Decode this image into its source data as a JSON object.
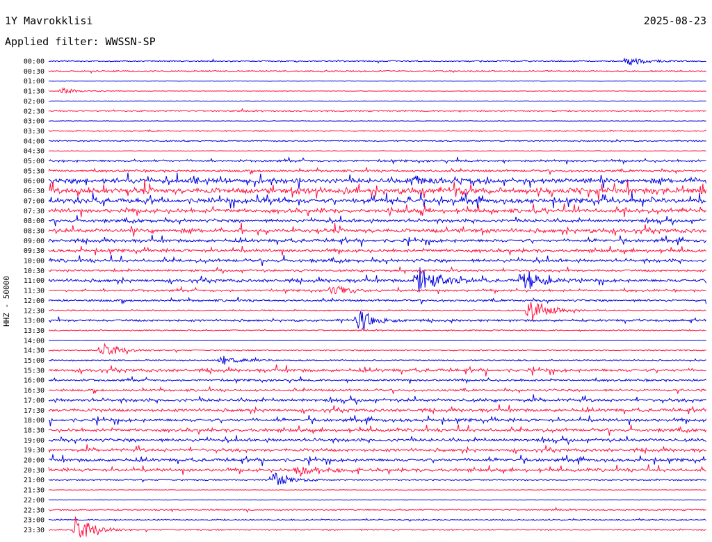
{
  "header": {
    "station": "1Y Mavrokklisi",
    "date": "2025-08-23",
    "filter": "Applied filter: WWSSN-SP"
  },
  "chart_data": {
    "type": "line",
    "title": "1Y Mavrokklisi",
    "subtitle": "Applied filter: WWSSN-SP",
    "ylabel": "HHZ - 50000",
    "grid": false,
    "colors": [
      "#0000e0",
      "#ff1040"
    ],
    "trace_labels": [
      "00:00",
      "00:30",
      "01:00",
      "01:30",
      "02:00",
      "02:30",
      "03:00",
      "03:30",
      "04:00",
      "04:30",
      "05:00",
      "05:30",
      "06:00",
      "06:30",
      "07:00",
      "07:30",
      "08:00",
      "08:30",
      "09:00",
      "09:30",
      "10:00",
      "10:30",
      "11:00",
      "11:30",
      "12:00",
      "12:30",
      "13:00",
      "13:30",
      "14:00",
      "14:30",
      "15:00",
      "15:30",
      "16:00",
      "16:30",
      "17:00",
      "17:30",
      "18:00",
      "18:30",
      "19:00",
      "19:30",
      "20:00",
      "20:30",
      "21:00",
      "21:30",
      "22:00",
      "22:30",
      "23:00",
      "23:30"
    ],
    "noise_level": [
      1,
      1,
      0,
      0,
      0,
      1,
      0,
      1,
      1,
      0,
      2,
      2,
      5,
      6,
      5,
      4,
      3,
      4,
      3,
      3,
      3,
      2,
      3,
      2,
      2,
      1,
      2,
      1,
      0,
      1,
      1,
      3,
      2,
      2,
      3,
      3,
      3,
      3,
      3,
      3,
      3,
      3,
      1,
      0,
      0,
      1,
      1,
      1
    ],
    "events": [
      {
        "trace": "00:00",
        "x": 0.88,
        "amp": 0.8
      },
      {
        "trace": "01:30",
        "x": 0.02,
        "amp": 0.6
      },
      {
        "trace": "06:00",
        "x": 0.55,
        "amp": 1.0
      },
      {
        "trace": "11:00",
        "x": 0.56,
        "amp": 3.2
      },
      {
        "trace": "11:00",
        "x": 0.72,
        "amp": 2.2
      },
      {
        "trace": "11:30",
        "x": 0.43,
        "amp": 1.2
      },
      {
        "trace": "12:30",
        "x": 0.73,
        "amp": 2.4
      },
      {
        "trace": "13:00",
        "x": 0.47,
        "amp": 2.0
      },
      {
        "trace": "14:30",
        "x": 0.08,
        "amp": 1.4
      },
      {
        "trace": "15:00",
        "x": 0.26,
        "amp": 1.0
      },
      {
        "trace": "20:30",
        "x": 0.38,
        "amp": 1.6
      },
      {
        "trace": "21:00",
        "x": 0.34,
        "amp": 1.6
      },
      {
        "trace": "23:30",
        "x": 0.04,
        "amp": 2.6
      }
    ]
  }
}
